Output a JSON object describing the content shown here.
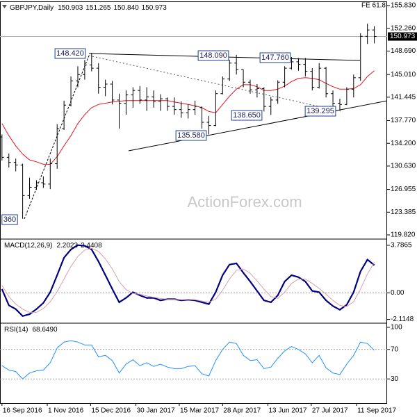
{
  "chart_data": [
    {
      "type": "ohlc",
      "title": "GBPJPY,Daily",
      "header_values": [
        150.903,
        151.265,
        {
          "value": 150.84,
          "label": "150.840"
        },
        150.973
      ],
      "fe_label": "FE 61.8",
      "watermark": "ActionForex.com",
      "last_price": 150.973,
      "annotations": [
        "148.420",
        "148.090",
        "147.760",
        "138.650",
        "135.580",
        "139.295",
        "360"
      ],
      "color": "#000000",
      "x": [
        "2016-09-16",
        "2016-09-23",
        "2016-09-30",
        "2016-10-07",
        "2016-10-14",
        "2016-10-21",
        "2016-10-28",
        "2016-11-04",
        "2016-11-11",
        "2016-11-18",
        "2016-11-25",
        "2016-12-02",
        "2016-12-09",
        "2016-12-16",
        "2016-12-23",
        "2016-12-30",
        "2017-01-06",
        "2017-01-13",
        "2017-01-20",
        "2017-01-27",
        "2017-02-03",
        "2017-02-10",
        "2017-02-17",
        "2017-02-24",
        "2017-03-03",
        "2017-03-10",
        "2017-03-17",
        "2017-03-24",
        "2017-03-31",
        "2017-04-07",
        "2017-04-14",
        "2017-04-21",
        "2017-04-28",
        "2017-05-05",
        "2017-05-12",
        "2017-05-19",
        "2017-05-26",
        "2017-06-02",
        "2017-06-09",
        "2017-06-16",
        "2017-06-23",
        "2017-06-30",
        "2017-07-07",
        "2017-07-14",
        "2017-07-21",
        "2017-07-28",
        "2017-08-04",
        "2017-08-11",
        "2017-08-18",
        "2017-08-25",
        "2017-09-01",
        "2017-09-08",
        "2017-09-15",
        "2017-09-22",
        "2017-09-29"
      ],
      "open": [
        135.2,
        132.0,
        131.2,
        130.8,
        126.0,
        127.3,
        128.0,
        127.8,
        131.0,
        136.5,
        140.2,
        144.0,
        145.0,
        146.5,
        146.0,
        143.0,
        143.5,
        141.0,
        140.5,
        141.8,
        142.5,
        141.0,
        141.5,
        140.8,
        141.2,
        140.0,
        139.5,
        139.0,
        139.5,
        139.8,
        137.5,
        137.0,
        142.0,
        144.3,
        146.8,
        145.8,
        143.8,
        142.6,
        142.8,
        140.0,
        141.0,
        143.8,
        146.0,
        147.0,
        146.6,
        145.5,
        143.0,
        146.0,
        142.0,
        140.5,
        140.3,
        142.7,
        144.5,
        151.0,
        152.0
      ],
      "high": [
        135.6,
        132.6,
        131.8,
        131.0,
        128.8,
        128.4,
        129.0,
        131.8,
        137.2,
        140.9,
        144.7,
        146.3,
        147.3,
        148.42,
        146.8,
        144.2,
        144.0,
        142.0,
        142.5,
        143.0,
        143.2,
        143.0,
        142.5,
        141.9,
        141.4,
        141.4,
        140.8,
        140.3,
        140.9,
        140.0,
        138.5,
        142.5,
        144.7,
        147.3,
        148.09,
        145.8,
        144.2,
        143.5,
        143.0,
        141.5,
        144.1,
        146.3,
        147.76,
        147.6,
        147.6,
        146.0,
        146.8,
        146.2,
        142.5,
        141.2,
        143.0,
        145.0,
        151.5,
        153.0,
        152.6
      ],
      "low": [
        131.5,
        130.4,
        129.8,
        122.36,
        125.5,
        126.9,
        127.2,
        127.0,
        130.2,
        136.3,
        140.0,
        143.0,
        144.2,
        145.5,
        142.0,
        141.6,
        140.3,
        136.5,
        138.7,
        139.8,
        140.4,
        139.3,
        139.8,
        139.3,
        139.3,
        138.7,
        138.2,
        138.1,
        138.7,
        136.5,
        135.58,
        136.9,
        141.9,
        144.0,
        145.0,
        143.0,
        142.0,
        141.4,
        139.2,
        138.65,
        140.4,
        143.0,
        145.8,
        145.6,
        144.7,
        142.5,
        142.8,
        141.4,
        139.8,
        139.295,
        140.2,
        141.4,
        144.0,
        149.8,
        149.9
      ],
      "close": [
        132.0,
        131.2,
        130.8,
        126.0,
        127.3,
        128.0,
        127.8,
        131.0,
        136.5,
        140.2,
        144.0,
        145.0,
        146.5,
        146.0,
        143.0,
        143.5,
        141.0,
        140.5,
        141.8,
        142.5,
        141.0,
        141.5,
        140.8,
        141.2,
        140.0,
        139.5,
        139.0,
        139.5,
        140.0,
        137.5,
        137.0,
        142.0,
        144.3,
        146.8,
        145.8,
        143.8,
        142.6,
        142.8,
        140.0,
        141.0,
        143.8,
        146.0,
        147.0,
        146.6,
        145.5,
        143.0,
        146.0,
        142.0,
        140.5,
        140.3,
        142.7,
        144.5,
        151.0,
        152.0,
        150.973
      ],
      "overlays": [
        {
          "color": "#e0141e",
          "values": [
            137.3,
            135.4,
            133.8,
            132.5,
            131.6,
            131.3,
            130.9,
            130.9,
            132.1,
            133.8,
            135.4,
            137.3,
            138.7,
            139.8,
            140.3,
            140.5,
            140.7,
            140.8,
            140.9,
            140.9,
            140.9,
            140.9,
            140.9,
            140.9,
            140.9,
            140.7,
            140.5,
            140.3,
            140.1,
            139.8,
            139.2,
            139.0,
            140.3,
            141.6,
            142.7,
            143.4,
            143.4,
            143.1,
            142.5,
            142.5,
            142.7,
            143.2,
            143.9,
            144.4,
            144.5,
            144.4,
            144.2,
            143.6,
            143.1,
            142.7,
            142.7,
            142.8,
            143.4,
            144.7,
            145.6
          ]
        }
      ],
      "xlim": [
        "2016-09-14",
        "2017-10-12"
      ],
      "xticks": [
        {
          "value": "2016-09-16",
          "label": "16 Sep 2016"
        },
        {
          "value": "2016-11-01",
          "label": "1 Nov 2016"
        },
        {
          "value": "2016-12-15",
          "label": "15 Dec 2016"
        },
        {
          "value": "2017-01-30",
          "label": "30 Jan 2017"
        },
        {
          "value": "2017-03-15",
          "label": "15 Mar 2017"
        },
        {
          "value": "2017-04-28",
          "label": "28 Apr 2017"
        },
        {
          "value": "2017-06-13",
          "label": "13 Jun 2017"
        },
        {
          "value": "2017-07-27",
          "label": "27 Jul 2017"
        },
        {
          "value": "2017-09-11",
          "label": "11 Sep 2017"
        }
      ],
      "ylim": [
        119.27,
        156.38
      ],
      "yticks": [
        {
          "value": 155.83,
          "label": "155.830"
        },
        {
          "value": 152.26,
          "label": "152.260"
        },
        {
          "value": 148.69,
          "label": "148.690"
        },
        {
          "value": 145.01,
          "label": "145.010"
        },
        141.445,
        {
          "value": 137.77,
          "label": "137.770"
        },
        {
          "value": 134.2,
          "label": "134.200"
        },
        {
          "value": 130.63,
          "label": "130.630"
        },
        126.955,
        123.385,
        {
          "value": 119.82,
          "label": "119.820"
        }
      ]
    },
    {
      "type": "line",
      "title": "MACD(12,26,9)",
      "header_values": [
        2.2023,
        2.4408
      ],
      "lines": [
        {
          "color": "#000080",
          "values": [
            0.3,
            -1.0,
            -1.3,
            -1.85,
            -1.7,
            -1.3,
            -0.8,
            0.05,
            1.4,
            2.8,
            3.45,
            3.8,
            3.75,
            3.45,
            2.5,
            1.4,
            0.3,
            -0.75,
            -0.4,
            0.05,
            -0.2,
            -0.4,
            -0.4,
            -0.6,
            -0.5,
            -0.5,
            -0.6,
            -0.55,
            -0.6,
            -0.75,
            -0.9,
            0.05,
            1.4,
            2.25,
            2.35,
            1.6,
            0.9,
            0.15,
            -0.6,
            -0.75,
            -0.2,
            0.9,
            1.4,
            1.25,
            0.9,
            0.15,
            0.05,
            -0.6,
            -1.05,
            -1.35,
            -0.95,
            0.05,
            1.7,
            2.65,
            2.2
          ]
        },
        {
          "color": "#d8a0a8",
          "values": [
            0.6,
            -0.3,
            -0.9,
            -1.3,
            -1.55,
            -1.55,
            -1.25,
            -0.7,
            0.1,
            1.1,
            2.1,
            2.9,
            3.4,
            3.55,
            3.3,
            2.7,
            1.9,
            0.9,
            0.25,
            -0.05,
            -0.1,
            -0.25,
            -0.35,
            -0.45,
            -0.5,
            -0.5,
            -0.55,
            -0.55,
            -0.55,
            -0.65,
            -0.75,
            -0.5,
            0.2,
            1.1,
            1.8,
            1.9,
            1.55,
            0.95,
            0.3,
            -0.3,
            -0.45,
            0.05,
            0.75,
            1.1,
            1.1,
            0.75,
            0.35,
            -0.1,
            -0.6,
            -1.0,
            -1.1,
            -0.7,
            0.3,
            1.5,
            2.44
          ]
        }
      ],
      "ylim": [
        -2.305,
        4.225
      ],
      "yticks": [
        3.7865,
        {
          "value": 0,
          "label": "0.00"
        },
        -2.1148
      ],
      "levels": [
        0
      ]
    },
    {
      "type": "line",
      "title": "RSI(14)",
      "header_values": [
        {
          "value": 68.649,
          "label": "68.6490"
        }
      ],
      "lines": [
        {
          "color": "#1e90ff",
          "values": [
            48,
            42,
            40,
            30,
            38,
            41,
            42,
            52,
            72,
            80,
            82,
            80,
            76,
            76,
            60,
            62,
            55,
            38,
            50,
            56,
            48,
            52,
            47,
            50,
            46,
            44,
            44,
            47,
            48,
            37,
            34,
            55,
            70,
            80,
            78,
            62,
            55,
            56,
            44,
            46,
            58,
            68,
            74,
            70,
            64,
            52,
            62,
            45,
            38,
            36,
            50,
            62,
            80,
            78,
            68.649
          ]
        }
      ],
      "ylim": [
        -2.8,
        104.7
      ],
      "yticks": [
        100,
        70,
        30
      ],
      "levels": [
        70,
        30
      ]
    }
  ]
}
